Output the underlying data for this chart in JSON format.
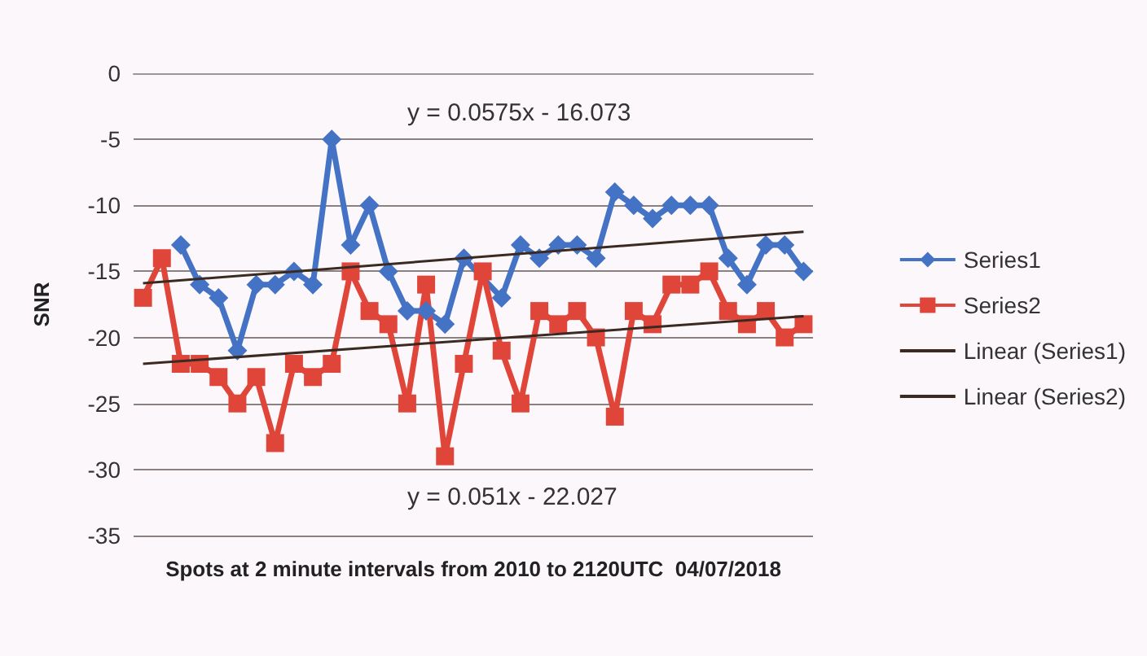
{
  "chart_data": {
    "type": "line",
    "ylabel": "SNR",
    "xlabel": "Spots at 2 minute intervals from 2010 to 2120UTC  04/07/2018",
    "categories": [
      null,
      null,
      null,
      null,
      null,
      null,
      null,
      null,
      null,
      null,
      null,
      null,
      null,
      null,
      null,
      null,
      null,
      null,
      null,
      null,
      null,
      null,
      null,
      null,
      null,
      null,
      null,
      null,
      null,
      null,
      null,
      null,
      null,
      null,
      null,
      null
    ],
    "series": [
      {
        "name": "Series1",
        "color": "#4472c4",
        "marker": "diamond",
        "values": [
          null,
          null,
          -13,
          -16,
          -17,
          -21,
          -16,
          -16,
          -15,
          -16,
          -5,
          -13,
          -10,
          -15,
          -18,
          -18,
          -19,
          -14,
          null,
          -17,
          -13,
          -14,
          -13,
          -13,
          -14,
          -9,
          -10,
          -11,
          -10,
          -10,
          -10,
          -14,
          -16,
          -13,
          -13,
          -15
        ]
      },
      {
        "name": "Series2",
        "color": "#e0453a",
        "marker": "square",
        "values": [
          -17,
          -14,
          -22,
          -22,
          -23,
          -25,
          -23,
          -28,
          -22,
          -23,
          -22,
          -15,
          -18,
          -19,
          -25,
          -16,
          -29,
          -22,
          -15,
          -21,
          -25,
          -18,
          -19,
          -18,
          -20,
          -26,
          -18,
          -19,
          -16,
          -16,
          -15,
          -18,
          -19,
          -18,
          -20,
          -19
        ]
      },
      {
        "name": "Linear (Series1)",
        "color": "#3a2a22",
        "marker": "none",
        "values": [
          -15.9,
          null,
          null,
          null,
          null,
          null,
          null,
          null,
          null,
          null,
          null,
          null,
          null,
          null,
          null,
          null,
          null,
          null,
          null,
          null,
          null,
          null,
          null,
          null,
          null,
          null,
          null,
          null,
          null,
          null,
          null,
          null,
          null,
          null,
          null,
          -12
        ]
      },
      {
        "name": "Linear (Series2)",
        "color": "#3a2a22",
        "marker": "none",
        "values": [
          -22,
          null,
          null,
          null,
          null,
          null,
          null,
          null,
          null,
          null,
          null,
          null,
          null,
          null,
          null,
          null,
          null,
          null,
          null,
          null,
          null,
          null,
          null,
          null,
          null,
          null,
          null,
          null,
          null,
          null,
          null,
          null,
          null,
          null,
          null,
          -18.4
        ]
      }
    ],
    "ylim": [
      -35,
      0
    ],
    "yticks": [
      -35,
      -30,
      -25,
      -20,
      -15,
      -10,
      -5,
      0
    ],
    "grid": "y",
    "legend": "right",
    "tick_labels": "y",
    "annotations": [
      "y = 0.0575x - 16.073",
      "y = 0.051x - 22.027"
    ]
  }
}
